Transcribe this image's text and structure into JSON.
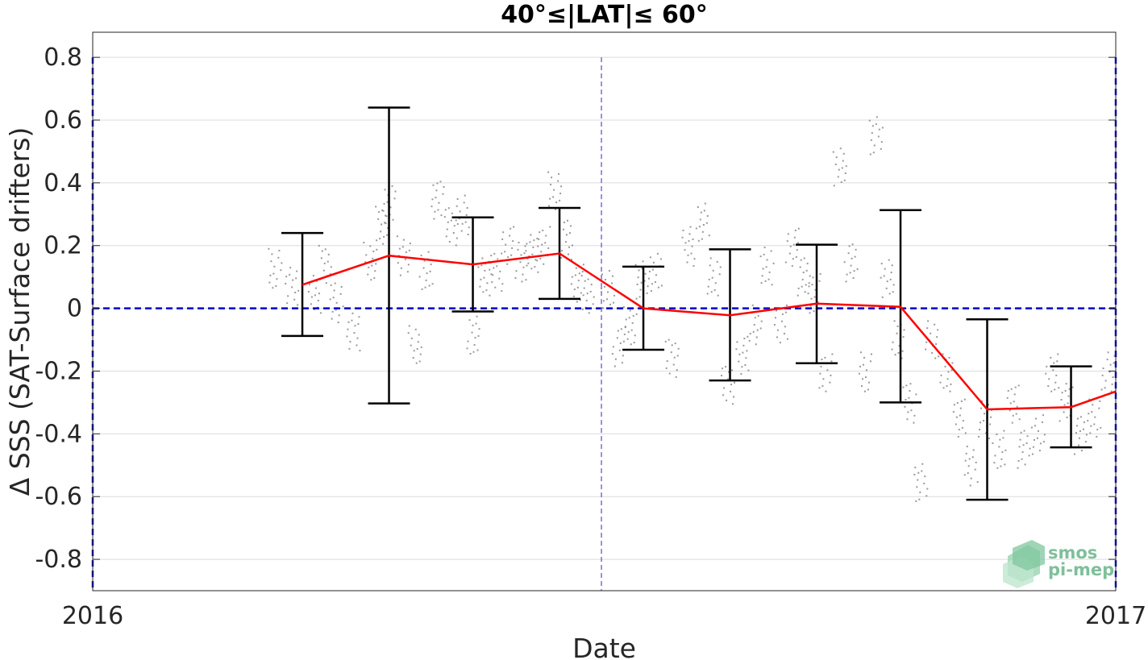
{
  "chart_data": {
    "type": "line",
    "title": "40°≤|LAT|≤ 60°",
    "xlabel": "Date",
    "ylabel": "Δ SSS (SAT-Surface drifters)",
    "x_range": [
      "2016-01-01",
      "2017-01-01"
    ],
    "x_tick_labels": [
      "2016",
      "2017"
    ],
    "ylim": [
      -0.9,
      0.88
    ],
    "y_ticks": [
      -0.8,
      -0.6,
      -0.4,
      -0.2,
      0,
      0.2,
      0.4,
      0.6,
      0.8
    ],
    "y_tick_labels": [
      "-0.8",
      "-0.6",
      "-0.4",
      "-0.2",
      "0",
      "0.2",
      "0.4",
      "0.6",
      "0.8"
    ],
    "grid": true,
    "colors": {
      "mean_line": "#ff0000",
      "error_bars": "#000000",
      "zero_line": "#0000cc",
      "midyear_line": "#7b68ee",
      "points": "#808080",
      "grid": "#dcdcdc"
    },
    "series": [
      {
        "type": "errorbar",
        "x": [
          "2016-03-16",
          "2016-04-16",
          "2016-05-16",
          "2016-06-16",
          "2016-07-16",
          "2016-08-16",
          "2016-09-16",
          "2016-10-16",
          "2016-11-16",
          "2016-12-16"
        ],
        "mean": [
          0.075,
          0.168,
          0.14,
          0.175,
          0.0,
          -0.022,
          0.015,
          0.005,
          -0.322,
          -0.315
        ],
        "lower": [
          -0.088,
          -0.303,
          -0.01,
          0.03,
          -0.132,
          -0.23,
          -0.175,
          -0.3,
          -0.61,
          -0.443
        ],
        "upper": [
          0.24,
          0.64,
          0.29,
          0.32,
          0.133,
          0.188,
          0.203,
          0.313,
          -0.035,
          -0.185
        ]
      },
      {
        "type": "line",
        "x": [
          "2016-03-16",
          "2016-04-16",
          "2016-05-16",
          "2016-06-16",
          "2016-07-16",
          "2016-08-16",
          "2016-09-16",
          "2016-10-16",
          "2016-11-16",
          "2016-12-16",
          "2017-01-01"
        ],
        "y": [
          0.075,
          0.168,
          0.14,
          0.175,
          0.0,
          -0.022,
          0.015,
          0.005,
          -0.322,
          -0.315,
          -0.265
        ]
      },
      {
        "type": "reference_line",
        "y": 0
      },
      {
        "type": "vertical_reference",
        "x": "2016-07-01"
      }
    ],
    "scatter_clusters": [
      {
        "x": "2016-03-06",
        "y": 0.13
      },
      {
        "x": "2016-03-12",
        "y": 0.07
      },
      {
        "x": "2016-03-20",
        "y": 0.05
      },
      {
        "x": "2016-03-24",
        "y": 0.14
      },
      {
        "x": "2016-03-28",
        "y": 0.02
      },
      {
        "x": "2016-04-03",
        "y": -0.07
      },
      {
        "x": "2016-04-09",
        "y": 0.15
      },
      {
        "x": "2016-04-13",
        "y": 0.27
      },
      {
        "x": "2016-04-16",
        "y": 0.33
      },
      {
        "x": "2016-04-21",
        "y": 0.17
      },
      {
        "x": "2016-04-25",
        "y": -0.11
      },
      {
        "x": "2016-04-29",
        "y": 0.12
      },
      {
        "x": "2016-05-03",
        "y": 0.35
      },
      {
        "x": "2016-05-08",
        "y": 0.26
      },
      {
        "x": "2016-05-12",
        "y": 0.3
      },
      {
        "x": "2016-05-16",
        "y": -0.08
      },
      {
        "x": "2016-05-20",
        "y": 0.1
      },
      {
        "x": "2016-05-24",
        "y": 0.12
      },
      {
        "x": "2016-05-28",
        "y": 0.2
      },
      {
        "x": "2016-06-02",
        "y": 0.15
      },
      {
        "x": "2016-06-06",
        "y": 0.18
      },
      {
        "x": "2016-06-10",
        "y": 0.2
      },
      {
        "x": "2016-06-14",
        "y": 0.38
      },
      {
        "x": "2016-06-18",
        "y": 0.22
      },
      {
        "x": "2016-06-22",
        "y": 0.08
      },
      {
        "x": "2016-06-26",
        "y": 0.05
      },
      {
        "x": "2016-07-03",
        "y": 0.06
      },
      {
        "x": "2016-07-07",
        "y": -0.12
      },
      {
        "x": "2016-07-11",
        "y": -0.05
      },
      {
        "x": "2016-07-15",
        "y": 0.09
      },
      {
        "x": "2016-07-20",
        "y": 0.12
      },
      {
        "x": "2016-07-26",
        "y": -0.16
      },
      {
        "x": "2016-08-01",
        "y": 0.2
      },
      {
        "x": "2016-08-06",
        "y": 0.28
      },
      {
        "x": "2016-08-10",
        "y": 0.1
      },
      {
        "x": "2016-08-15",
        "y": -0.24
      },
      {
        "x": "2016-08-20",
        "y": -0.15
      },
      {
        "x": "2016-08-25",
        "y": -0.05
      },
      {
        "x": "2016-08-29",
        "y": 0.14
      },
      {
        "x": "2016-09-03",
        "y": -0.05
      },
      {
        "x": "2016-09-07",
        "y": 0.2
      },
      {
        "x": "2016-09-11",
        "y": 0.1
      },
      {
        "x": "2016-09-15",
        "y": 0.05
      },
      {
        "x": "2016-09-19",
        "y": -0.2
      },
      {
        "x": "2016-09-24",
        "y": 0.45
      },
      {
        "x": "2016-09-28",
        "y": 0.15
      },
      {
        "x": "2016-10-03",
        "y": -0.2
      },
      {
        "x": "2016-10-07",
        "y": 0.55
      },
      {
        "x": "2016-10-11",
        "y": 0.1
      },
      {
        "x": "2016-10-15",
        "y": -0.1
      },
      {
        "x": "2016-10-19",
        "y": -0.3
      },
      {
        "x": "2016-10-23",
        "y": -0.55
      },
      {
        "x": "2016-10-27",
        "y": -0.1
      },
      {
        "x": "2016-11-01",
        "y": -0.2
      },
      {
        "x": "2016-11-06",
        "y": -0.35
      },
      {
        "x": "2016-11-10",
        "y": -0.5
      },
      {
        "x": "2016-11-15",
        "y": -0.35
      },
      {
        "x": "2016-11-20",
        "y": -0.45
      },
      {
        "x": "2016-11-25",
        "y": -0.3
      },
      {
        "x": "2016-11-29",
        "y": -0.45
      },
      {
        "x": "2016-12-04",
        "y": -0.4
      },
      {
        "x": "2016-12-09",
        "y": -0.2
      },
      {
        "x": "2016-12-14",
        "y": -0.3
      },
      {
        "x": "2016-12-19",
        "y": -0.4
      },
      {
        "x": "2016-12-24",
        "y": -0.35
      },
      {
        "x": "2016-12-29",
        "y": -0.2
      }
    ]
  },
  "logo": {
    "line1": "smos",
    "line2": "pi-mep"
  }
}
